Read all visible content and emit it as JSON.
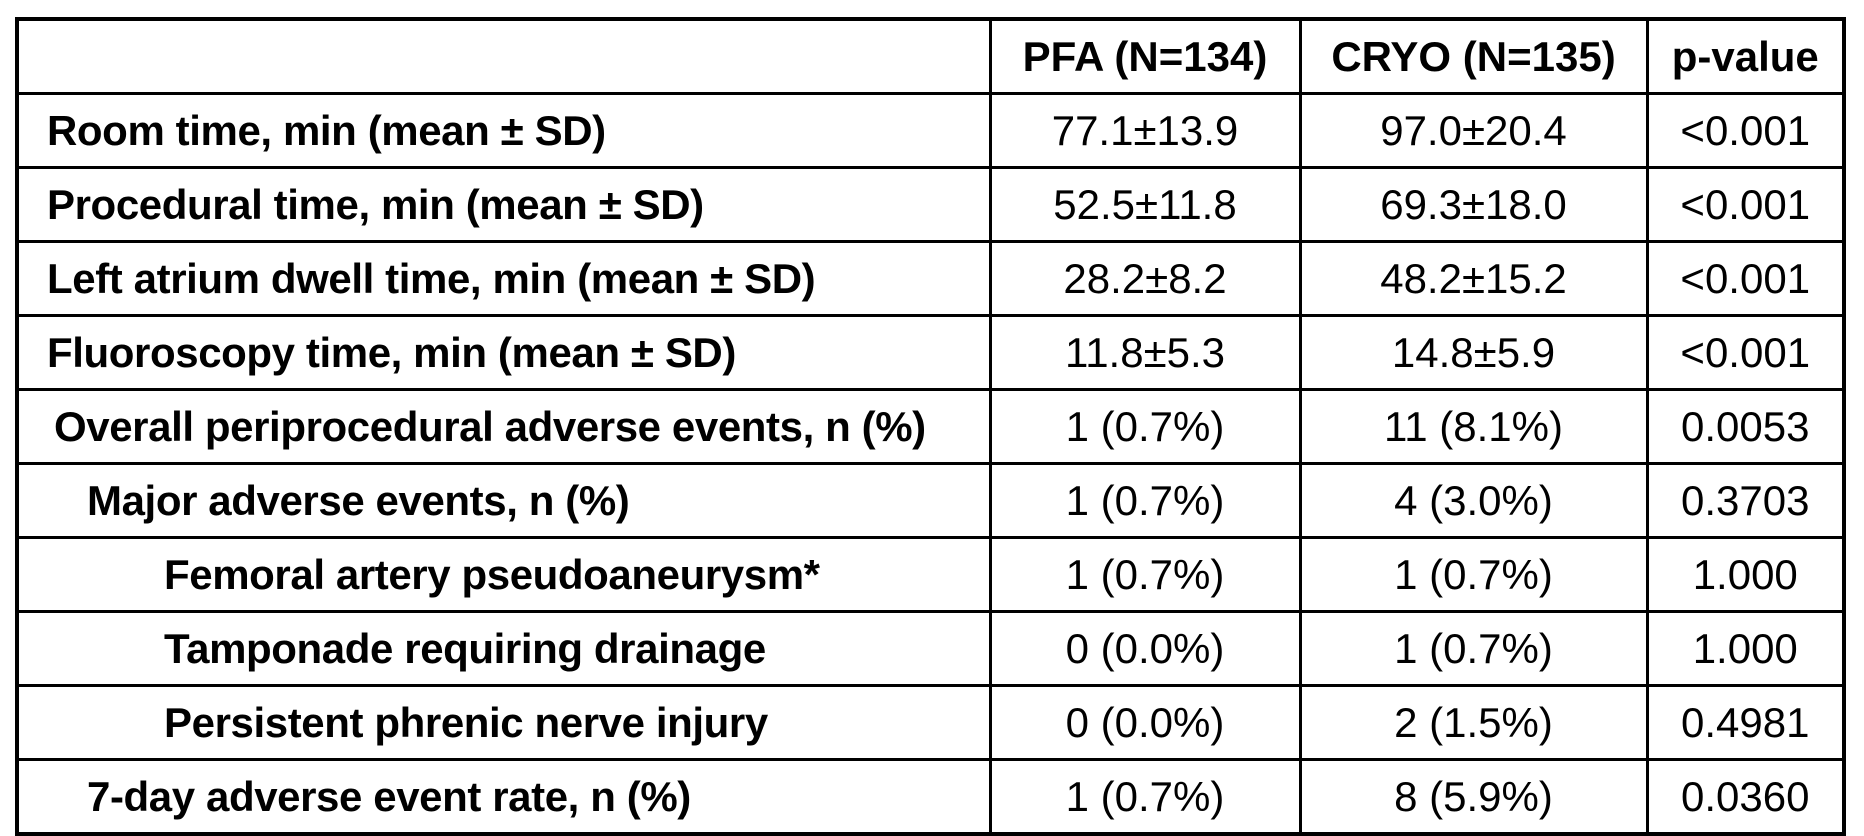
{
  "page": {
    "background_color": "#ffffff",
    "border_color": "#000000",
    "text_color": "#000000"
  },
  "table": {
    "columns": [
      "",
      "PFA (N=134)",
      "CRYO (N=135)",
      "p-value"
    ],
    "rows": [
      {
        "label": "Room time, min (mean ± SD)",
        "indent_level": 0,
        "pfa": "77.1±13.9",
        "cryo": "97.0±20.4",
        "p": "<0.001"
      },
      {
        "label": "Procedural time, min (mean ± SD)",
        "indent_level": 0,
        "pfa": "52.5±11.8",
        "cryo": "69.3±18.0",
        "p": "<0.001"
      },
      {
        "label": "Left atrium dwell time, min (mean ± SD)",
        "indent_level": 0,
        "pfa": "28.2±8.2",
        "cryo": "48.2±15.2",
        "p": "<0.001"
      },
      {
        "label": "Fluoroscopy time, min (mean ± SD)",
        "indent_level": 0,
        "pfa": "11.8±5.3",
        "cryo": "14.8±5.9",
        "p": "<0.001"
      },
      {
        "label": "Overall periprocedural adverse events, n (%)",
        "indent_level": 1,
        "pfa": "1 (0.7%)",
        "cryo": "11 (8.1%)",
        "p": "0.0053"
      },
      {
        "label": "Major adverse events, n (%)",
        "indent_level": 2,
        "pfa": "1 (0.7%)",
        "cryo": "4 (3.0%)",
        "p": "0.3703"
      },
      {
        "label": "Femoral artery pseudoaneurysm*",
        "indent_level": 3,
        "pfa": "1 (0.7%)",
        "cryo": "1 (0.7%)",
        "p": "1.000"
      },
      {
        "label": "Tamponade requiring drainage",
        "indent_level": 3,
        "pfa": "0 (0.0%)",
        "cryo": "1 (0.7%)",
        "p": "1.000"
      },
      {
        "label": "Persistent phrenic nerve injury",
        "indent_level": 3,
        "pfa": "0 (0.0%)",
        "cryo": "2 (1.5%)",
        "p": "0.4981"
      },
      {
        "label": "7-day adverse event rate, n (%)",
        "indent_level": 2,
        "pfa": "1 (0.7%)",
        "cryo": "8 (5.9%)",
        "p": "0.0360"
      }
    ]
  }
}
